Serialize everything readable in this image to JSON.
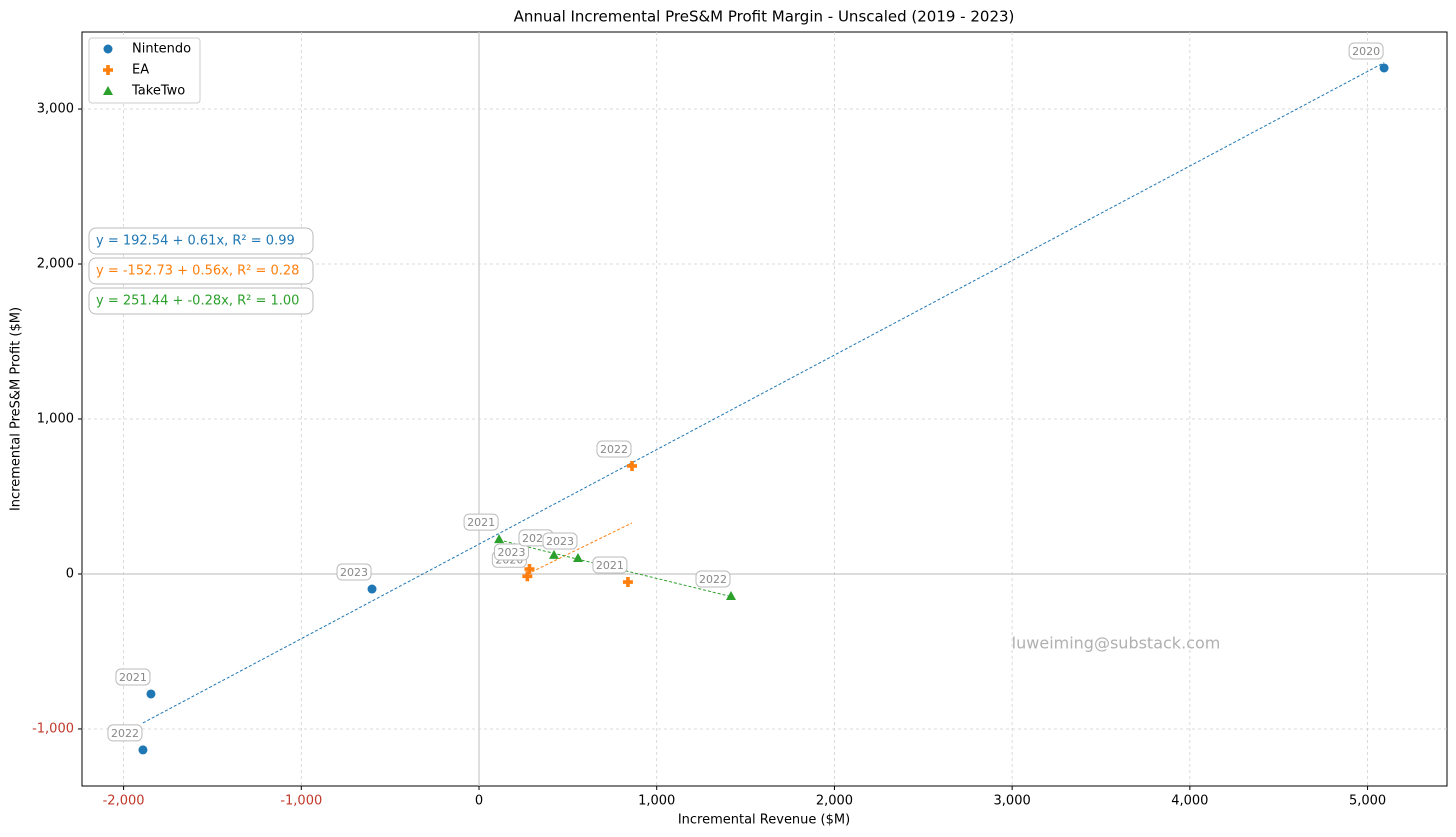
{
  "chart_data": {
    "type": "scatter",
    "title": "Annual Incremental PreS&M Profit Margin - Unscaled (2019 - 2023)",
    "x_label": "Incremental Revenue ($M)",
    "y_label": "Incremental PreS&M Profit ($M)",
    "watermark": "luweiming@substack.com",
    "xlim": [
      -2234,
      5447
    ],
    "ylim": [
      -1368,
      3497
    ],
    "xticks": [
      {
        "value": -2000,
        "label": "-2,000"
      },
      {
        "value": -1000,
        "label": "-1,000"
      },
      0,
      {
        "value": 1000,
        "label": "1,000"
      },
      {
        "value": 2000,
        "label": "2,000"
      },
      {
        "value": 3000,
        "label": "3,000"
      },
      {
        "value": 4000,
        "label": "4,000"
      },
      {
        "value": 5000,
        "label": "5,000"
      }
    ],
    "yticks": [
      {
        "value": -1000,
        "label": "-1,000"
      },
      0,
      {
        "value": 1000,
        "label": "1,000"
      },
      {
        "value": 2000,
        "label": "2,000"
      },
      {
        "value": 3000,
        "label": "3,000"
      }
    ],
    "negative_tick_color": "#c0392b",
    "grid": true,
    "legend": "upper left",
    "series": [
      {
        "name": "Nintendo",
        "color": "#1f77b4",
        "marker": "circle",
        "x": [
          5093,
          -1846,
          -1891,
          -602
        ],
        "values": [
          3265,
          -774,
          -1135,
          -97
        ],
        "labels": [
          "2020",
          "2021",
          "2022",
          "2023"
        ],
        "fit": {
          "intercept": 192.54,
          "slope": 0.61,
          "label": "y = 192.54 + 0.61x, R² = 0.99"
        }
      },
      {
        "name": "EA",
        "color": "#ff7f0e",
        "marker": "plus",
        "x": [
          272,
          838,
          861,
          284
        ],
        "values": [
          -15,
          -52,
          697,
          32
        ],
        "labels": [
          "2020",
          "2021",
          "2022",
          "2023"
        ],
        "fit": {
          "intercept": -152.73,
          "slope": 0.56,
          "label": "y = -152.73 + 0.56x, R² = 0.28"
        }
      },
      {
        "name": "TakeTwo",
        "color": "#2ca02c",
        "marker": "triangle",
        "x": [
          422,
          113,
          1418,
          557
        ],
        "values": [
          123,
          225,
          -142,
          103
        ],
        "labels": [
          "2020",
          "2021",
          "2022",
          "2023"
        ],
        "fit": {
          "intercept": 251.44,
          "slope": -0.28,
          "label": "y = 251.44 + -0.28x, R² = 1.00"
        }
      }
    ]
  }
}
